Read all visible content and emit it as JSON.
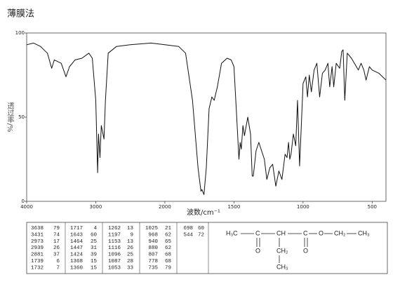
{
  "chart_data": {
    "type": "line",
    "title": "薄膜法",
    "xlabel": "波数/cm⁻¹",
    "ylabel": "透过率/%",
    "xlim": [
      4000,
      400
    ],
    "x_scale_break": 2000,
    "xticks": [
      4000,
      3000,
      2000,
      1500,
      1000,
      500
    ],
    "ylim": [
      0,
      100
    ],
    "yticks": [
      0,
      50,
      100
    ],
    "x": [
      4000,
      3900,
      3800,
      3700,
      3638,
      3600,
      3500,
      3431,
      3380,
      3300,
      3200,
      3100,
      3050,
      3000,
      2973,
      2960,
      2939,
      2920,
      2881,
      2860,
      2820,
      2700,
      2500,
      2200,
      2000,
      1900,
      1850,
      1800,
      1760,
      1739,
      1732,
      1717,
      1700,
      1680,
      1660,
      1643,
      1620,
      1590,
      1550,
      1520,
      1500,
      1480,
      1464,
      1455,
      1447,
      1435,
      1424,
      1400,
      1380,
      1368,
      1360,
      1340,
      1320,
      1300,
      1280,
      1262,
      1240,
      1220,
      1197,
      1175,
      1153,
      1130,
      1116,
      1105,
      1096,
      1087,
      1070,
      1053,
      1040,
      1025,
      1010,
      1000,
      980,
      968,
      955,
      940,
      920,
      900,
      880,
      860,
      840,
      820,
      807,
      790,
      778,
      760,
      735,
      720,
      710,
      698,
      680,
      650,
      600,
      580,
      560,
      544,
      520,
      500,
      450,
      400
    ],
    "series": [
      {
        "color": "#111111",
        "values": [
          93,
          94,
          92,
          88,
          79,
          84,
          82,
          74,
          80,
          84,
          85,
          88,
          85,
          60,
          17,
          40,
          26,
          45,
          37,
          60,
          88,
          92,
          93,
          94,
          93,
          92,
          88,
          60,
          20,
          6,
          7,
          4,
          20,
          55,
          62,
          60,
          68,
          82,
          85,
          84,
          80,
          50,
          25,
          35,
          31,
          45,
          39,
          50,
          40,
          15,
          15,
          30,
          35,
          30,
          25,
          13,
          20,
          22,
          9,
          18,
          13,
          28,
          26,
          35,
          25,
          28,
          40,
          33,
          60,
          21,
          50,
          70,
          74,
          62,
          75,
          65,
          78,
          82,
          62,
          76,
          78,
          82,
          68,
          80,
          68,
          82,
          79,
          89,
          90,
          60,
          88,
          85,
          78,
          82,
          78,
          72,
          80,
          78,
          76,
          72
        ]
      }
    ]
  },
  "peak_table": [
    [
      [
        "3638",
        "79"
      ],
      [
        "3431",
        "74"
      ],
      [
        "2973",
        "17"
      ],
      [
        "2939",
        "26"
      ],
      [
        "2881",
        "37"
      ],
      [
        "1739",
        "6"
      ],
      [
        "1732",
        "7"
      ]
    ],
    [
      [
        "1717",
        "4"
      ],
      [
        "1643",
        "60"
      ],
      [
        "1464",
        "25"
      ],
      [
        "1447",
        "31"
      ],
      [
        "1424",
        "39"
      ],
      [
        "1368",
        "15"
      ],
      [
        "1360",
        "15"
      ]
    ],
    [
      [
        "1262",
        "13"
      ],
      [
        "1197",
        "9"
      ],
      [
        "1153",
        "13"
      ],
      [
        "1116",
        "26"
      ],
      [
        "1096",
        "25"
      ],
      [
        "1087",
        "28"
      ],
      [
        "1053",
        "33"
      ]
    ],
    [
      [
        "1025",
        "21"
      ],
      [
        "968",
        "62"
      ],
      [
        "940",
        "65"
      ],
      [
        "880",
        "62"
      ],
      [
        "807",
        "68"
      ],
      [
        "778",
        "68"
      ],
      [
        "735",
        "79"
      ]
    ],
    [
      [
        "698",
        "60"
      ],
      [
        "544",
        "72"
      ]
    ]
  ],
  "structure": {
    "atoms": [
      "H₃C",
      "C",
      "CH",
      "C",
      "O",
      "CH₂",
      "CH₃",
      "O",
      "CH₂",
      "CH₃",
      "O"
    ]
  }
}
